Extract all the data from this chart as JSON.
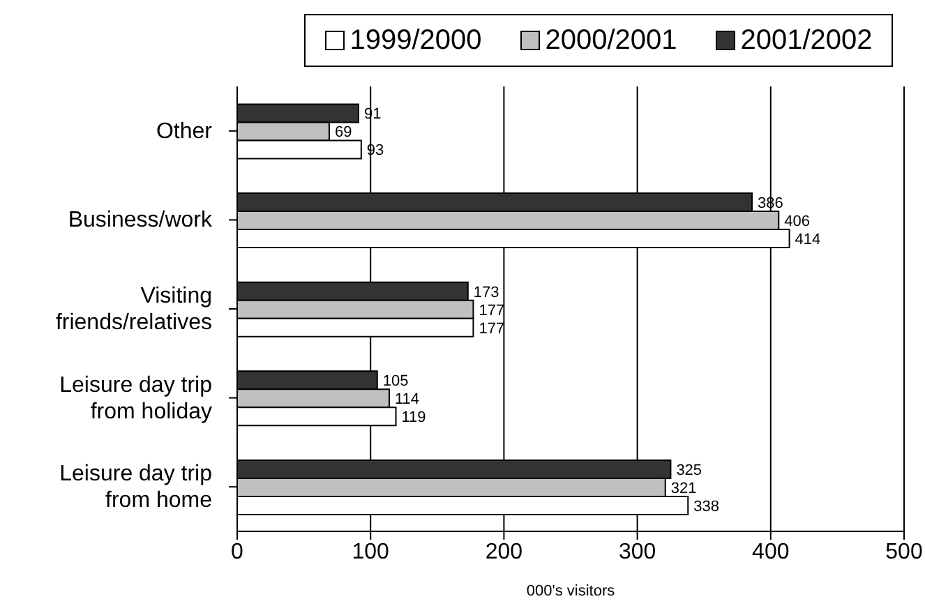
{
  "chart_data": {
    "type": "bar",
    "orientation": "horizontal",
    "xlabel": "000's visitors",
    "categories": [
      "Other",
      "Business/work",
      "Visiting friends/relatives",
      "Leisure day trip from holiday",
      "Leisure day trip from home"
    ],
    "series": [
      {
        "name": "1999/2000",
        "color": "#ffffff",
        "values": [
          93,
          414,
          177,
          119,
          338
        ]
      },
      {
        "name": "2000/2001",
        "color": "#c0c0c0",
        "values": [
          69,
          406,
          177,
          114,
          321
        ]
      },
      {
        "name": "2001/2002",
        "color": "#333333",
        "values": [
          91,
          386,
          173,
          105,
          325
        ]
      }
    ],
    "xlim": [
      0,
      500
    ],
    "xticks": [
      0,
      100,
      200,
      300,
      400,
      500
    ],
    "grid": "x",
    "legend": "top",
    "data_labels": true
  }
}
